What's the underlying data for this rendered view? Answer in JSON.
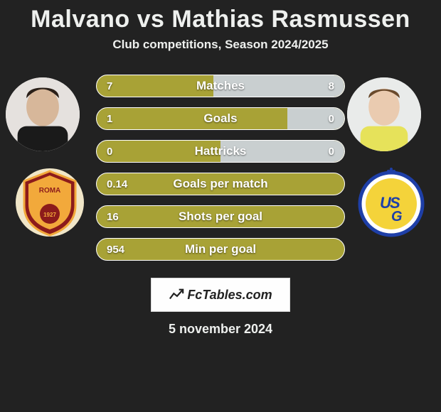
{
  "title": "Malvano vs Mathias Rasmussen",
  "subtitle": "Club competitions, Season 2024/2025",
  "date": "5 november 2024",
  "branding": "FcTables.com",
  "colors": {
    "bar_left": "#a8a236",
    "bar_right": "#c9cfd0",
    "background": "#222222",
    "border": "#ffffff"
  },
  "avatar_bg_left": "#e5e1de",
  "avatar_bg_right": "#e9ebea",
  "club_left": {
    "bg": "#f0e6c8",
    "primary": "#8c1b1b",
    "secondary": "#f2a93b",
    "text": "ROMA",
    "text2": "1927"
  },
  "club_right": {
    "bg": "#ffffff",
    "primary": "#1e3fa8",
    "secondary": "#f4d33a",
    "letters": "USG"
  },
  "stats": [
    {
      "label": "Matches",
      "left_val": "7",
      "right_val": "8",
      "left_pct": 47
    },
    {
      "label": "Goals",
      "left_val": "1",
      "right_val": "0",
      "left_pct": 77
    },
    {
      "label": "Hattricks",
      "left_val": "0",
      "right_val": "0",
      "left_pct": 50
    },
    {
      "label": "Goals per match",
      "left_val": "0.14",
      "right_val": "",
      "left_pct": 100
    },
    {
      "label": "Shots per goal",
      "left_val": "16",
      "right_val": "",
      "left_pct": 100
    },
    {
      "label": "Min per goal",
      "left_val": "954",
      "right_val": "",
      "left_pct": 100
    }
  ]
}
